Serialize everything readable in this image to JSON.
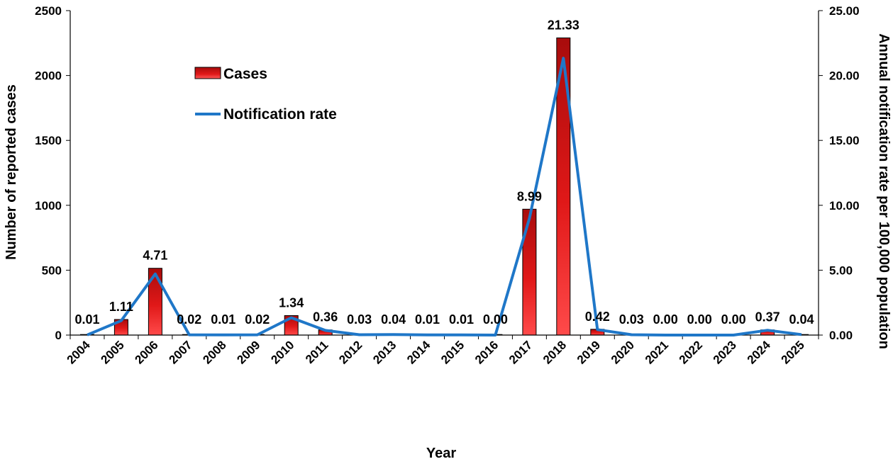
{
  "chart_data": {
    "type": "bar",
    "categories": [
      "2004",
      "2005",
      "2006",
      "2007",
      "2008",
      "2009",
      "2010",
      "2011",
      "2012",
      "2013",
      "2014",
      "2015",
      "2016",
      "2017",
      "2018",
      "2019",
      "2020",
      "2021",
      "2022",
      "2023",
      "2024",
      "2025"
    ],
    "series": [
      {
        "name": "Cases",
        "type": "bar",
        "axis": "left",
        "color": "#e8221c",
        "values": [
          1,
          120,
          515,
          2,
          1,
          2,
          150,
          40,
          3,
          4,
          1,
          1,
          0,
          970,
          2290,
          45,
          3,
          0,
          0,
          0,
          40,
          4
        ]
      },
      {
        "name": "Notification rate",
        "type": "line",
        "axis": "right",
        "color": "#1f77c8",
        "values": [
          0.01,
          1.11,
          4.71,
          0.02,
          0.01,
          0.02,
          1.34,
          0.36,
          0.03,
          0.04,
          0.01,
          0.01,
          0.0,
          8.99,
          21.33,
          0.42,
          0.03,
          0.0,
          0.0,
          0.0,
          0.37,
          0.04
        ],
        "data_labels": [
          "0.01",
          "1.11",
          "4.71",
          "0.02",
          "0.01",
          "0.02",
          "1.34",
          "0.36",
          "0.03",
          "0.04",
          "0.01",
          "0.01",
          "0.00",
          "8.99",
          "21.33",
          "0.42",
          "0.03",
          "0.00",
          "0.00",
          "0.00",
          "0.37",
          "0.04"
        ]
      }
    ],
    "xlabel": "Year",
    "ylabel": "Number of reported cases",
    "y2label": "Annual notification rate per 100,000 population",
    "ylim": [
      0,
      2500
    ],
    "y2lim": [
      0,
      25
    ],
    "yticks": [
      "0",
      "500",
      "1000",
      "1500",
      "2000",
      "2500"
    ],
    "y2ticks": [
      "0.00",
      "5.00",
      "10.00",
      "15.00",
      "20.00",
      "25.00"
    ],
    "grid": false,
    "legend_position": "top-left"
  }
}
